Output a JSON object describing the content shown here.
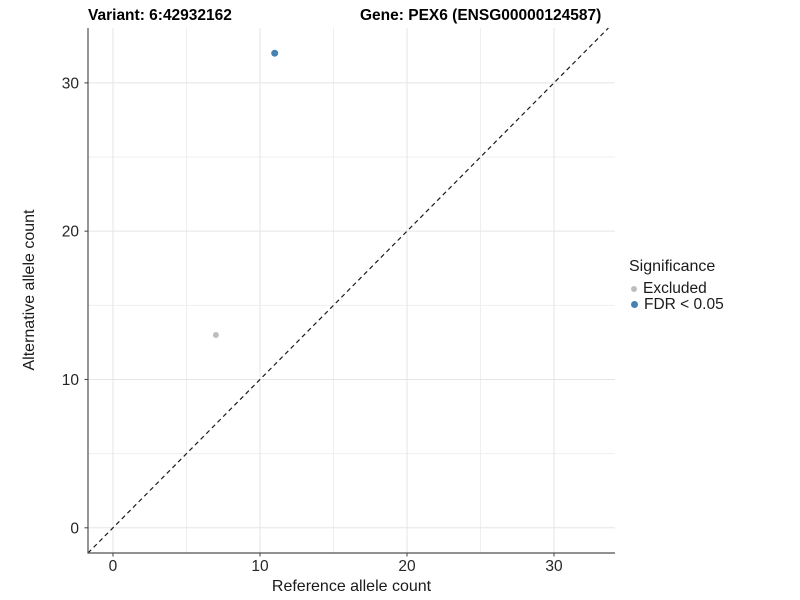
{
  "titles": {
    "variant": "Variant: 6:42932162",
    "gene": "Gene: PEX6 (ENSG00000124587)"
  },
  "chart_data": {
    "type": "scatter",
    "xlabel": "Reference allele count",
    "ylabel": "Alternative allele count",
    "xlim": [
      -1.7,
      34.15
    ],
    "ylim": [
      -1.7,
      33.7
    ],
    "x_ticks": [
      0,
      10,
      20,
      30
    ],
    "y_ticks": [
      0,
      10,
      20,
      30
    ],
    "x_minor_ticks": [
      5,
      15,
      25
    ],
    "y_minor_ticks": [
      5,
      15,
      25
    ],
    "grid": true,
    "identity_line": {
      "type": "abline",
      "slope": 1,
      "intercept": 0,
      "style": "dashed",
      "color": "#1a1a1a"
    },
    "series": [
      {
        "name": "Excluded",
        "color": "#bebebe",
        "point_radius": 3,
        "points": [
          {
            "x": 7,
            "y": 13
          }
        ]
      },
      {
        "name": "FDR < 0.05",
        "color": "#4682b4",
        "point_radius": 3.5,
        "points": [
          {
            "x": 11,
            "y": 32
          }
        ]
      }
    ],
    "legend": {
      "title": "Significance",
      "position": "right"
    },
    "style": {
      "axis_line_color": "#4f4f4f",
      "tick_color": "#4f4f4f",
      "tick_label_color": "#262626",
      "major_grid_color": "#e5e5e5",
      "minor_grid_color": "#efefef",
      "panel_background": "#ffffff"
    }
  }
}
